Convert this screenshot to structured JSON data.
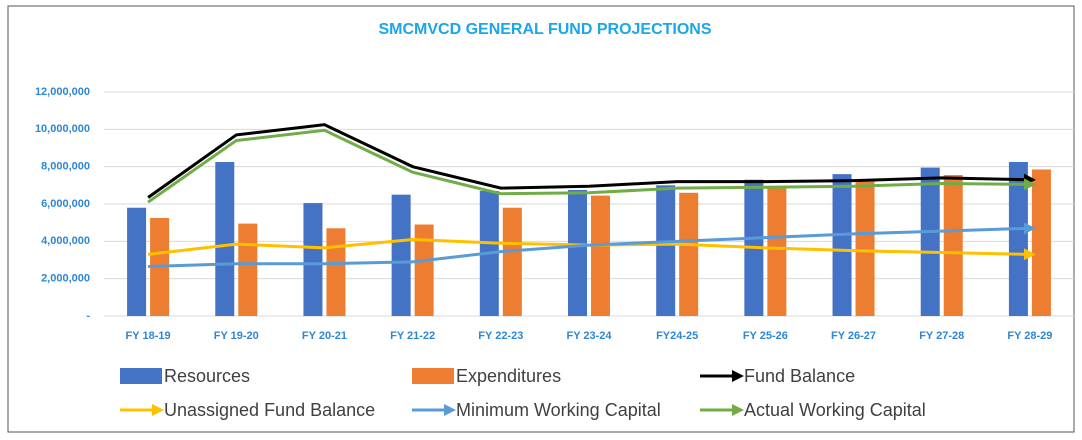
{
  "chart_data": {
    "type": "bar-line",
    "title": "SMCMVCD GENERAL FUND PROJECTIONS",
    "categories": [
      "FY 18-19",
      "FY 19-20",
      "FY 20-21",
      "FY 21-22",
      "FY 22-23",
      "FY 23-24",
      "FY24-25",
      "FY 25-26",
      "FY 26-27",
      "FY 27-28",
      "FY 28-29"
    ],
    "series": [
      {
        "name": "Resources",
        "kind": "bar",
        "color": "#4472c4",
        "values": [
          5800000,
          8250000,
          6050000,
          6500000,
          6700000,
          6750000,
          7000000,
          7300000,
          7600000,
          7950000,
          8250000
        ]
      },
      {
        "name": "Expenditures",
        "kind": "bar",
        "color": "#ed7d31",
        "values": [
          5250000,
          4950000,
          4700000,
          4900000,
          5800000,
          6450000,
          6600000,
          6950000,
          7200000,
          7550000,
          7850000
        ]
      },
      {
        "name": "Fund Balance",
        "kind": "line",
        "color": "#000000",
        "values": [
          6350000,
          9700000,
          10250000,
          8000000,
          6850000,
          6950000,
          7200000,
          7200000,
          7250000,
          7400000,
          7300000
        ]
      },
      {
        "name": "Unassigned Fund Balance",
        "kind": "line",
        "color": "#ffc000",
        "values": [
          3300000,
          3850000,
          3650000,
          4100000,
          3900000,
          3800000,
          3850000,
          3650000,
          3500000,
          3400000,
          3300000
        ]
      },
      {
        "name": "Minimum Working Capital",
        "kind": "line",
        "color": "#5b9bd5",
        "values": [
          2650000,
          2800000,
          2800000,
          2900000,
          3450000,
          3800000,
          4000000,
          4200000,
          4400000,
          4550000,
          4700000
        ]
      },
      {
        "name": "Actual Working Capital",
        "kind": "line",
        "color": "#70ad47",
        "values": [
          6100000,
          9400000,
          9950000,
          7700000,
          6550000,
          6600000,
          6850000,
          6900000,
          6950000,
          7100000,
          7050000
        ]
      }
    ],
    "ylim": [
      0,
      12000000
    ],
    "yticks": [
      {
        "value": 0,
        "label": "-"
      },
      {
        "value": 2000000,
        "label": "2,000,000"
      },
      {
        "value": 4000000,
        "label": "4,000,000"
      },
      {
        "value": 6000000,
        "label": "6,000,000"
      },
      {
        "value": 8000000,
        "label": "8,000,000"
      },
      {
        "value": 10000000,
        "label": "10,000,000"
      },
      {
        "value": 12000000,
        "label": "12,000,000"
      }
    ],
    "grid": true,
    "legend": "bottom"
  }
}
